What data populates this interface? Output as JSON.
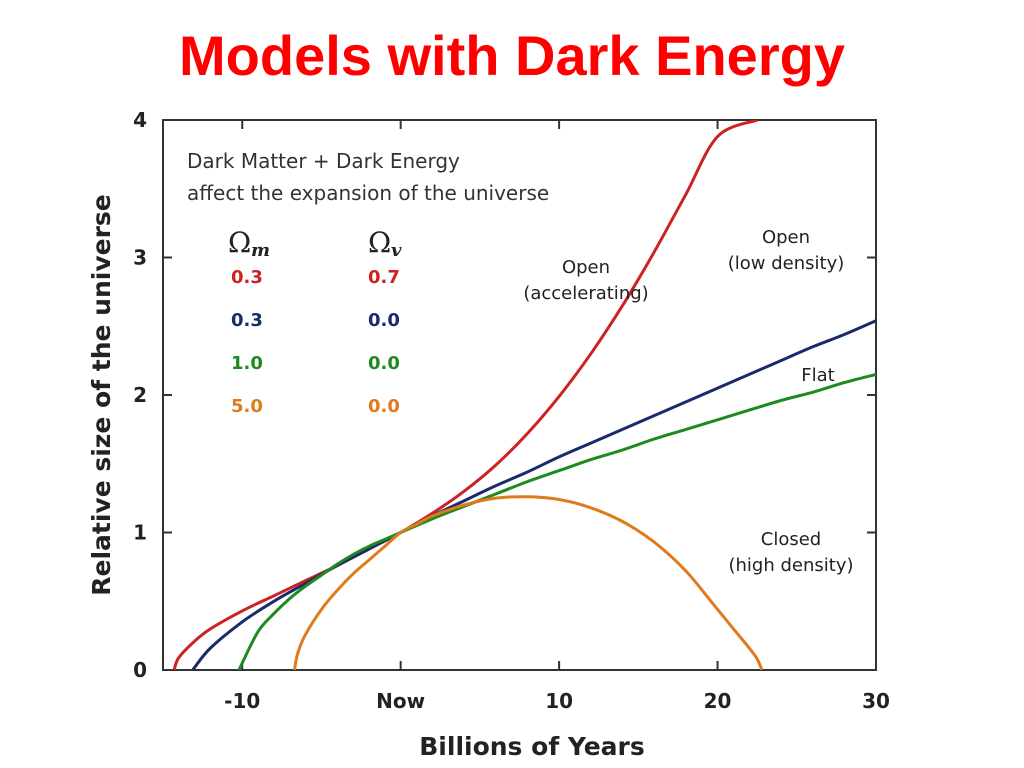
{
  "title": "Models with Dark Energy",
  "chart_data": {
    "type": "line",
    "xlabel": "Billions of Years",
    "ylabel": "Relative size of the universe",
    "xlim": [
      -15,
      30
    ],
    "ylim": [
      0,
      4
    ],
    "x_ticks": [
      {
        "value": -10,
        "label": "-10"
      },
      {
        "value": 0,
        "label": "Now"
      },
      {
        "value": 10,
        "label": "10"
      },
      {
        "value": 20,
        "label": "20"
      },
      {
        "value": 30,
        "label": "30"
      }
    ],
    "y_ticks": [
      {
        "value": 0,
        "label": "0"
      },
      {
        "value": 1,
        "label": "1"
      },
      {
        "value": 2,
        "label": "2"
      },
      {
        "value": 3,
        "label": "3"
      },
      {
        "value": 4,
        "label": "4"
      }
    ],
    "grid": false,
    "annotation": {
      "line1": "Dark Matter + Dark Energy",
      "line2": "affect the expansion of the universe"
    },
    "table": {
      "header_m": "m",
      "header_v": "v",
      "rows": [
        {
          "omega_m": "0.3",
          "omega_v": "0.7",
          "color": "#cc2222"
        },
        {
          "omega_m": "0.3",
          "omega_v": "0.0",
          "color": "#1a2a6b"
        },
        {
          "omega_m": "1.0",
          "omega_v": "0.0",
          "color": "#1e8a1e"
        },
        {
          "omega_m": "5.0",
          "omega_v": "0.0",
          "color": "#e07a1a"
        }
      ]
    },
    "series": [
      {
        "label_lines": [
          "Open",
          "(accelerating)"
        ],
        "color": "#cc2222",
        "x": [
          -14.3,
          -14.0,
          -13.0,
          -12.0,
          -10.0,
          -8.0,
          -6.0,
          -4.0,
          -2.0,
          0.0,
          2.0,
          4.0,
          6.0,
          8.0,
          10.0,
          12.0,
          14.0,
          16.0,
          18.0,
          20.0,
          22.5
        ],
        "y": [
          0.0,
          0.09,
          0.21,
          0.3,
          0.43,
          0.54,
          0.65,
          0.76,
          0.88,
          1.0,
          1.14,
          1.3,
          1.49,
          1.72,
          1.99,
          2.3,
          2.65,
          3.04,
          3.46,
          3.88,
          4.0
        ]
      },
      {
        "label_lines": [
          "Open",
          "(low density)"
        ],
        "color": "#1a2a6b",
        "x": [
          -13.1,
          -13.0,
          -12.0,
          -10.0,
          -8.0,
          -6.0,
          -4.0,
          -2.0,
          0.0,
          2.0,
          4.0,
          6.0,
          8.0,
          10.0,
          12.0,
          14.0,
          16.0,
          18.0,
          20.0,
          22.0,
          24.0,
          26.0,
          28.0,
          30.0
        ],
        "y": [
          0.0,
          0.02,
          0.16,
          0.35,
          0.5,
          0.63,
          0.76,
          0.88,
          1.0,
          1.12,
          1.23,
          1.34,
          1.44,
          1.55,
          1.65,
          1.75,
          1.85,
          1.95,
          2.05,
          2.15,
          2.25,
          2.35,
          2.44,
          2.54
        ]
      },
      {
        "label_lines": [
          "Flat"
        ],
        "color": "#1e8a1e",
        "x": [
          -10.2,
          -10.0,
          -9.0,
          -8.0,
          -7.0,
          -6.0,
          -5.0,
          -4.0,
          -3.0,
          -2.0,
          -1.0,
          0.0,
          2.0,
          4.0,
          6.0,
          8.0,
          10.0,
          12.0,
          14.0,
          16.0,
          18.0,
          20.0,
          22.0,
          24.0,
          26.0,
          28.0,
          30.0
        ],
        "y": [
          0.0,
          0.05,
          0.28,
          0.41,
          0.52,
          0.61,
          0.69,
          0.77,
          0.84,
          0.9,
          0.95,
          1.0,
          1.1,
          1.19,
          1.28,
          1.37,
          1.45,
          1.53,
          1.6,
          1.68,
          1.75,
          1.82,
          1.89,
          1.96,
          2.02,
          2.09,
          2.15
        ]
      },
      {
        "label_lines": [
          "Closed",
          "(high density)"
        ],
        "color": "#e07a1a",
        "x": [
          -6.7,
          -6.5,
          -6.0,
          -5.0,
          -4.0,
          -3.0,
          -2.0,
          -1.0,
          0.0,
          1.0,
          2.0,
          4.0,
          6.0,
          8.0,
          10.0,
          12.0,
          14.0,
          16.0,
          18.0,
          20.0,
          21.0,
          22.0,
          22.5,
          22.8
        ],
        "y": [
          0.0,
          0.12,
          0.26,
          0.44,
          0.58,
          0.7,
          0.8,
          0.9,
          1.0,
          1.06,
          1.12,
          1.2,
          1.25,
          1.26,
          1.24,
          1.18,
          1.08,
          0.93,
          0.72,
          0.44,
          0.3,
          0.16,
          0.08,
          0.0
        ]
      }
    ]
  }
}
